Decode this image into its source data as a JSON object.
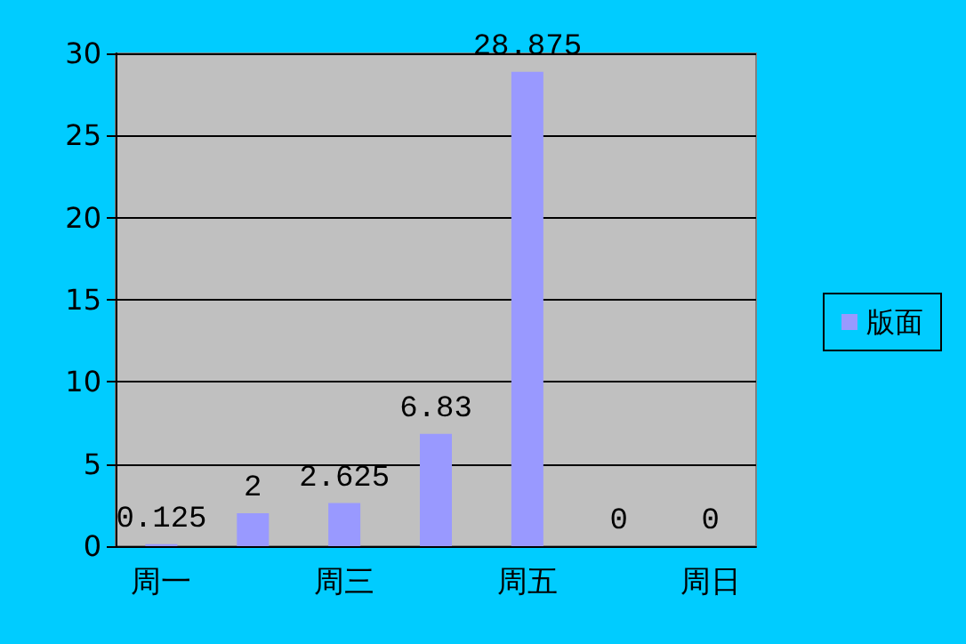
{
  "chart_data": {
    "type": "bar",
    "categories": [
      "周一",
      null,
      "周三",
      null,
      "周五",
      null,
      "周日"
    ],
    "series": [
      {
        "name": "版面",
        "color": "#9999ff",
        "values": [
          0.125,
          2,
          2.625,
          6.83,
          28.875,
          0,
          0
        ]
      }
    ],
    "ylim": [
      0,
      30
    ],
    "yticks": [
      0,
      5,
      10,
      15,
      20,
      25,
      30
    ],
    "grid": "y",
    "legend": "right",
    "data_labels": true
  }
}
